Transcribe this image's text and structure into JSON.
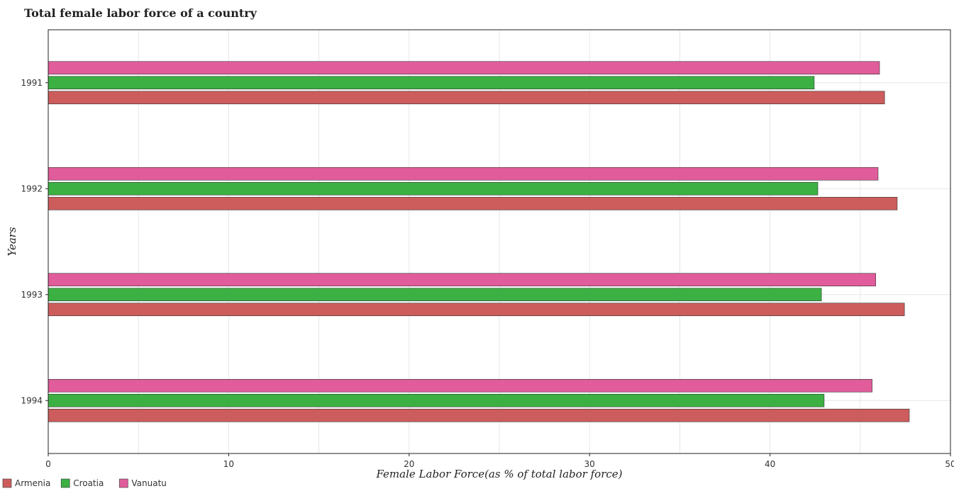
{
  "chart_data": {
    "type": "bar",
    "orientation": "horizontal",
    "title": "Total female labor force of a country",
    "xlabel": "Female Labor Force(as % of total labor force)",
    "ylabel": "Years",
    "categories": [
      "1991",
      "1992",
      "1993",
      "1994"
    ],
    "xlim": [
      0,
      50
    ],
    "xticks": [
      "0",
      "10",
      "20",
      "30",
      "40",
      "50"
    ],
    "grid": true,
    "legend_position": "bottom-left",
    "series": [
      {
        "name": "Armenia",
        "color": "#cd5c5c",
        "values": [
          46.35,
          47.05,
          47.45,
          47.72
        ]
      },
      {
        "name": "Croatia",
        "color": "#3cb043",
        "values": [
          42.45,
          42.65,
          42.85,
          43.0
        ]
      },
      {
        "name": "Vanuatu",
        "color": "#e05c9a",
        "values": [
          46.07,
          45.99,
          45.86,
          45.66
        ]
      }
    ]
  }
}
